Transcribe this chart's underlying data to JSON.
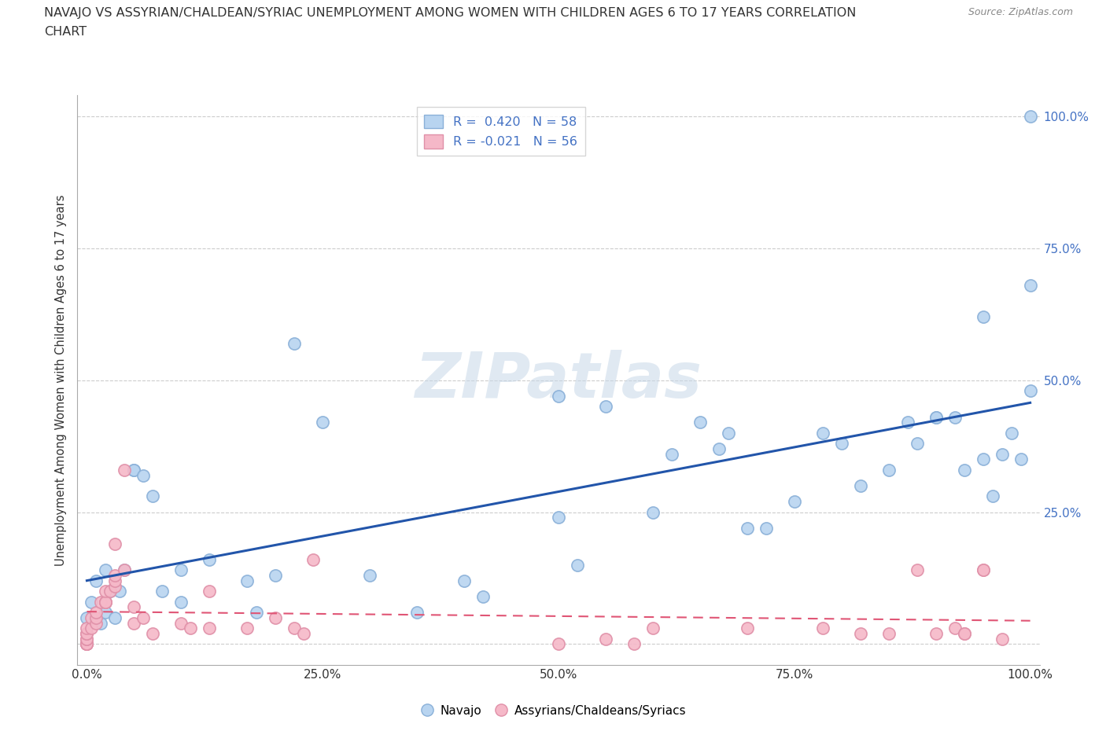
{
  "title_line1": "NAVAJO VS ASSYRIAN/CHALDEAN/SYRIAC UNEMPLOYMENT AMONG WOMEN WITH CHILDREN AGES 6 TO 17 YEARS CORRELATION",
  "title_line2": "CHART",
  "source_text": "Source: ZipAtlas.com",
  "ylabel": "Unemployment Among Women with Children Ages 6 to 17 years",
  "watermark": "ZIPatlas",
  "navajo_color": "#b8d4f0",
  "navajo_edge": "#8ab0d8",
  "assyrian_color": "#f5b8c8",
  "assyrian_edge": "#e090a8",
  "trend_navajo_color": "#2255aa",
  "trend_assyrian_color": "#e05575",
  "navajo_x": [
    0.0,
    0.005,
    0.01,
    0.015,
    0.02,
    0.02,
    0.025,
    0.03,
    0.035,
    0.04,
    0.05,
    0.05,
    0.06,
    0.07,
    0.08,
    0.1,
    0.1,
    0.13,
    0.17,
    0.18,
    0.2,
    0.22,
    0.25,
    0.3,
    0.35,
    0.4,
    0.42,
    0.5,
    0.5,
    0.52,
    0.55,
    0.6,
    0.62,
    0.65,
    0.67,
    0.68,
    0.7,
    0.72,
    0.75,
    0.78,
    0.8,
    0.82,
    0.85,
    0.87,
    0.88,
    0.9,
    0.9,
    0.92,
    0.93,
    0.95,
    0.95,
    0.96,
    0.97,
    0.98,
    0.99,
    1.0,
    1.0,
    1.0
  ],
  "navajo_y": [
    0.05,
    0.08,
    0.12,
    0.04,
    0.06,
    0.14,
    0.1,
    0.05,
    0.1,
    0.14,
    0.33,
    0.33,
    0.32,
    0.28,
    0.1,
    0.14,
    0.08,
    0.16,
    0.12,
    0.06,
    0.13,
    0.57,
    0.42,
    0.13,
    0.06,
    0.12,
    0.09,
    0.47,
    0.24,
    0.15,
    0.45,
    0.25,
    0.36,
    0.42,
    0.37,
    0.4,
    0.22,
    0.22,
    0.27,
    0.4,
    0.38,
    0.3,
    0.33,
    0.42,
    0.38,
    0.43,
    0.43,
    0.43,
    0.33,
    0.35,
    0.62,
    0.28,
    0.36,
    0.4,
    0.35,
    0.48,
    0.68,
    1.0
  ],
  "assyrian_x": [
    0.0,
    0.0,
    0.0,
    0.0,
    0.0,
    0.0,
    0.0,
    0.0,
    0.0,
    0.0,
    0.005,
    0.005,
    0.01,
    0.01,
    0.01,
    0.015,
    0.02,
    0.02,
    0.02,
    0.02,
    0.025,
    0.03,
    0.03,
    0.03,
    0.03,
    0.04,
    0.04,
    0.05,
    0.05,
    0.06,
    0.07,
    0.1,
    0.11,
    0.13,
    0.13,
    0.17,
    0.2,
    0.22,
    0.23,
    0.24,
    0.5,
    0.55,
    0.58,
    0.6,
    0.7,
    0.78,
    0.82,
    0.85,
    0.88,
    0.9,
    0.92,
    0.93,
    0.93,
    0.95,
    0.95,
    0.97
  ],
  "assyrian_y": [
    0.0,
    0.0,
    0.0,
    0.0,
    0.0,
    0.01,
    0.01,
    0.02,
    0.02,
    0.03,
    0.03,
    0.05,
    0.04,
    0.05,
    0.06,
    0.08,
    0.08,
    0.08,
    0.08,
    0.1,
    0.1,
    0.11,
    0.12,
    0.13,
    0.19,
    0.33,
    0.14,
    0.04,
    0.07,
    0.05,
    0.02,
    0.04,
    0.03,
    0.1,
    0.03,
    0.03,
    0.05,
    0.03,
    0.02,
    0.16,
    0.0,
    0.01,
    0.0,
    0.03,
    0.03,
    0.03,
    0.02,
    0.02,
    0.14,
    0.02,
    0.03,
    0.02,
    0.02,
    0.14,
    0.14,
    0.01
  ],
  "xlim": [
    -0.01,
    1.01
  ],
  "ylim": [
    -0.04,
    1.04
  ],
  "xticks": [
    0.0,
    0.25,
    0.5,
    0.75,
    1.0
  ],
  "xtick_labels": [
    "0.0%",
    "25.0%",
    "50.0%",
    "75.0%",
    "100.0%"
  ],
  "right_ytick_labels": [
    "100.0%",
    "75.0%",
    "50.0%",
    "25.0%"
  ],
  "right_yticks": [
    1.0,
    0.75,
    0.5,
    0.25
  ],
  "yticks": [
    0.0,
    0.25,
    0.5,
    0.75,
    1.0
  ],
  "grid_color": "#cccccc",
  "background_color": "#ffffff",
  "navajo_R": 0.42,
  "navajo_N": 58,
  "assyrian_R": -0.021,
  "assyrian_N": 56,
  "marker_size": 120,
  "title_fontsize": 11.5,
  "source_fontsize": 9
}
